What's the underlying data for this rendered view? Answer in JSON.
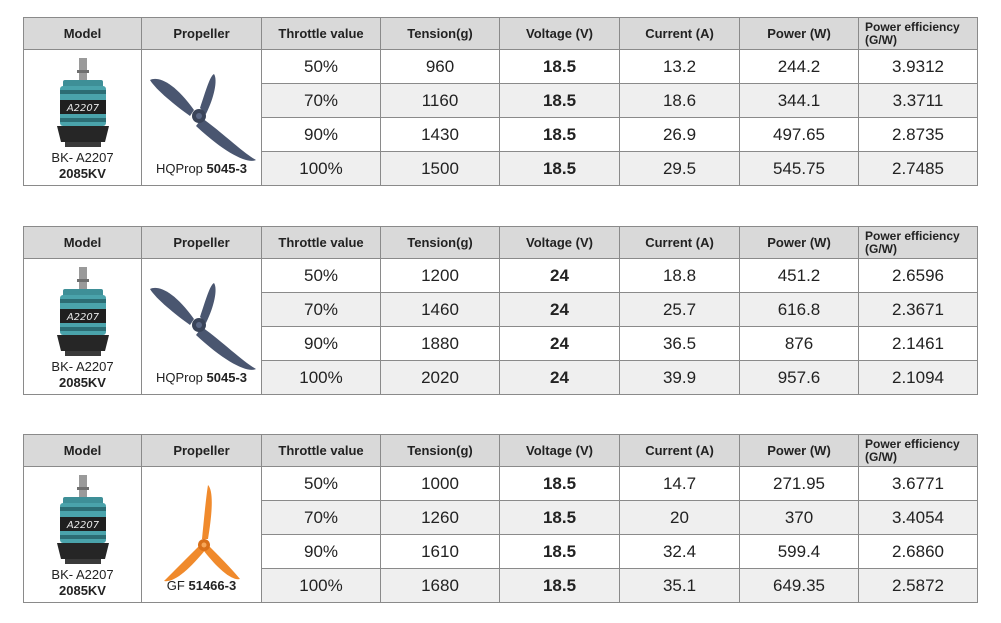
{
  "headers": [
    "Model",
    "Propeller",
    "Throttle value",
    "Tension(g)",
    "Voltage (V)",
    "Current (A)",
    "Power (W)",
    "Power efficiency (G/W)"
  ],
  "colors": {
    "header_bg": "#d9d9d9",
    "alt_row_bg": "#efefef",
    "border": "#8a8a8a",
    "motor_teal": "#4aa3ab",
    "prop_navy": "#4a5670",
    "prop_orange": "#f08a2c"
  },
  "tables": [
    {
      "model": {
        "line1": "BK- A2207",
        "line2": "2085KV",
        "image": "motor-image"
      },
      "propeller": {
        "prefix": "HQProp",
        "model": "5045-3",
        "image": "navy-tri-blade-propeller"
      },
      "rows": [
        {
          "throttle": "50%",
          "tension": "960",
          "voltage": "18.5",
          "current": "13.2",
          "power": "244.2",
          "efficiency": "3.9312"
        },
        {
          "throttle": "70%",
          "tension": "1160",
          "voltage": "18.5",
          "current": "18.6",
          "power": "344.1",
          "efficiency": "3.3711"
        },
        {
          "throttle": "90%",
          "tension": "1430",
          "voltage": "18.5",
          "current": "26.9",
          "power": "497.65",
          "efficiency": "2.8735"
        },
        {
          "throttle": "100%",
          "tension": "1500",
          "voltage": "18.5",
          "current": "29.5",
          "power": "545.75",
          "efficiency": "2.7485"
        }
      ]
    },
    {
      "model": {
        "line1": "BK- A2207",
        "line2": "2085KV",
        "image": "motor-image"
      },
      "propeller": {
        "prefix": "HQProp",
        "model": "5045-3",
        "image": "navy-tri-blade-propeller"
      },
      "rows": [
        {
          "throttle": "50%",
          "tension": "1200",
          "voltage": "24",
          "current": "18.8",
          "power": "451.2",
          "efficiency": "2.6596"
        },
        {
          "throttle": "70%",
          "tension": "1460",
          "voltage": "24",
          "current": "25.7",
          "power": "616.8",
          "efficiency": "2.3671"
        },
        {
          "throttle": "90%",
          "tension": "1880",
          "voltage": "24",
          "current": "36.5",
          "power": "876",
          "efficiency": "2.1461"
        },
        {
          "throttle": "100%",
          "tension": "2020",
          "voltage": "24",
          "current": "39.9",
          "power": "957.6",
          "efficiency": "2.1094"
        }
      ]
    },
    {
      "model": {
        "line1": "BK- A2207",
        "line2": "2085KV",
        "image": "motor-image"
      },
      "propeller": {
        "prefix": "GF",
        "model": "51466-3",
        "image": "orange-tri-blade-propeller"
      },
      "rows": [
        {
          "throttle": "50%",
          "tension": "1000",
          "voltage": "18.5",
          "current": "14.7",
          "power": "271.95",
          "efficiency": "3.6771"
        },
        {
          "throttle": "70%",
          "tension": "1260",
          "voltage": "18.5",
          "current": "20",
          "power": "370",
          "efficiency": "3.4054"
        },
        {
          "throttle": "90%",
          "tension": "1610",
          "voltage": "18.5",
          "current": "32.4",
          "power": "599.4",
          "efficiency": "2.6860"
        },
        {
          "throttle": "100%",
          "tension": "1680",
          "voltage": "18.5",
          "current": "35.1",
          "power": "649.35",
          "efficiency": "2.5872"
        }
      ]
    }
  ]
}
